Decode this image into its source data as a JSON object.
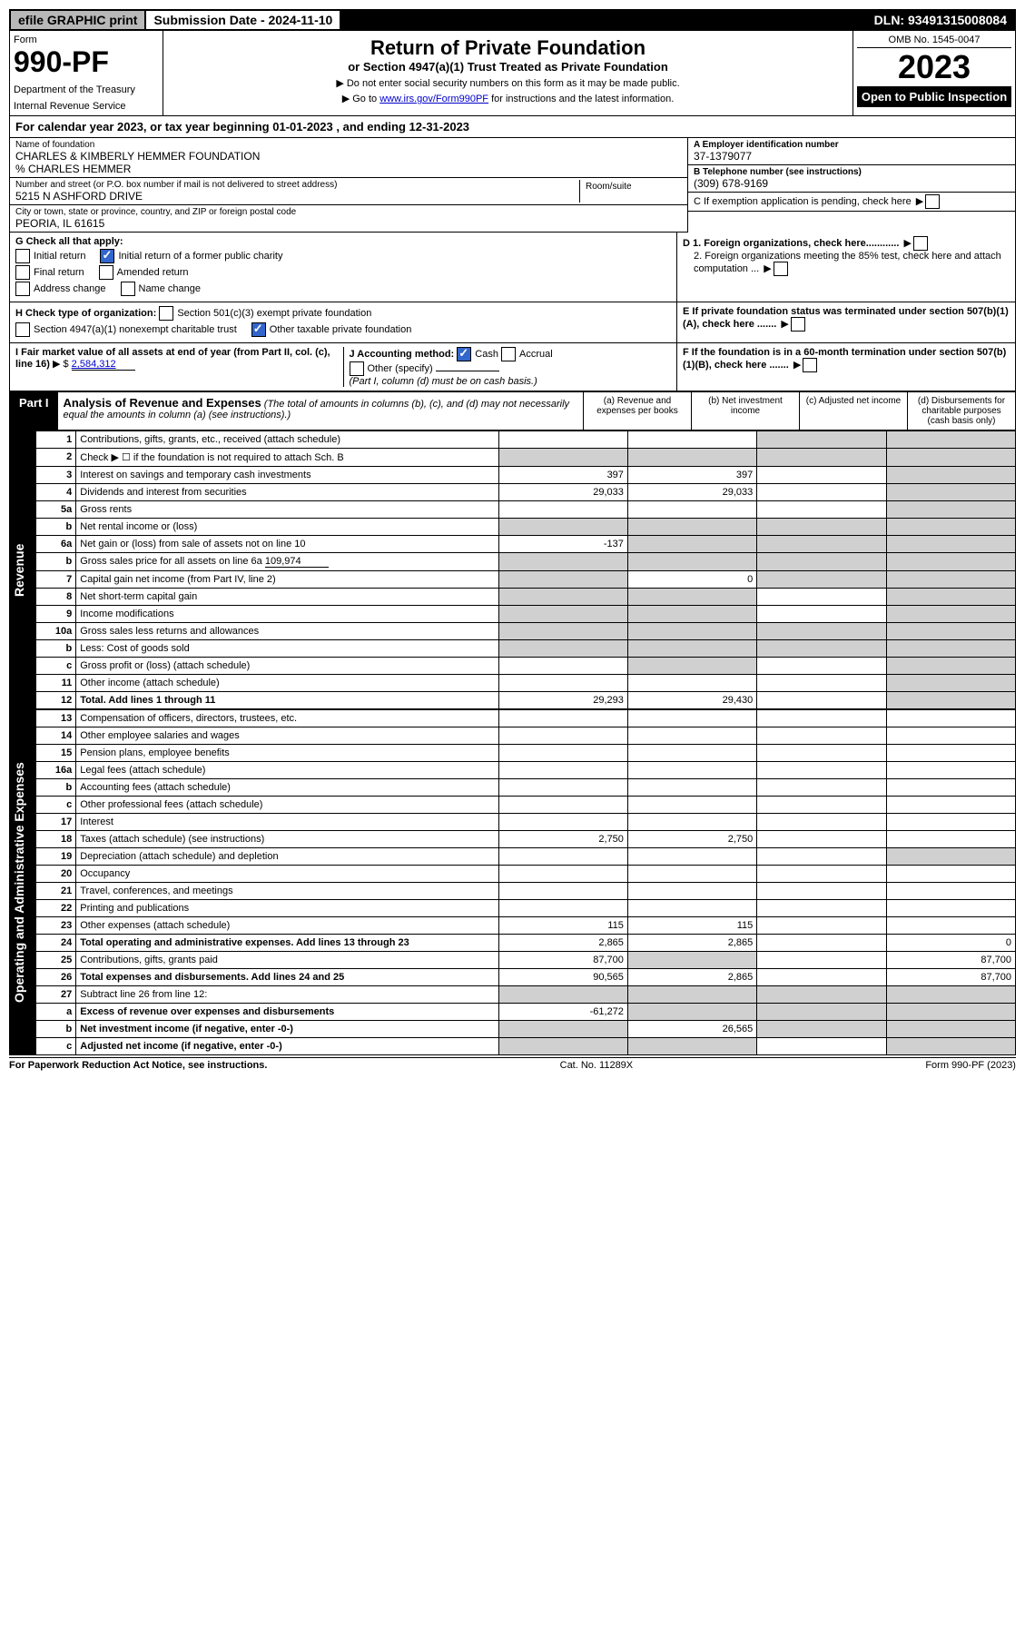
{
  "top_bar": {
    "efile": "efile GRAPHIC print",
    "submission": "Submission Date - 2024-11-10",
    "dln": "DLN: 93491315008084"
  },
  "header": {
    "form_label": "Form",
    "form_number": "990-PF",
    "dept1": "Department of the Treasury",
    "dept2": "Internal Revenue Service",
    "title": "Return of Private Foundation",
    "subtitle": "or Section 4947(a)(1) Trust Treated as Private Foundation",
    "instr1": "▶ Do not enter social security numbers on this form as it may be made public.",
    "instr2_pre": "▶ Go to ",
    "instr2_link": "www.irs.gov/Form990PF",
    "instr2_post": " for instructions and the latest information.",
    "omb": "OMB No. 1545-0047",
    "year": "2023",
    "inspection": "Open to Public Inspection"
  },
  "cal_year": {
    "text_pre": "For calendar year 2023, or tax year beginning ",
    "begin": "01-01-2023",
    "text_mid": " , and ending ",
    "end": "12-31-2023"
  },
  "info": {
    "name_label": "Name of foundation",
    "name": "CHARLES & KIMBERLY HEMMER FOUNDATION",
    "care_of": "% CHARLES HEMMER",
    "address_label": "Number and street (or P.O. box number if mail is not delivered to street address)",
    "address": "5215 N ASHFORD DRIVE",
    "room_label": "Room/suite",
    "city_label": "City or town, state or province, country, and ZIP or foreign postal code",
    "city": "PEORIA, IL  61615",
    "ein_label": "A Employer identification number",
    "ein": "37-1379077",
    "phone_label": "B Telephone number (see instructions)",
    "phone": "(309) 678-9169",
    "c_label": "C If exemption application is pending, check here",
    "d1_label": "D 1. Foreign organizations, check here............",
    "d2_label": "2. Foreign organizations meeting the 85% test, check here and attach computation ...",
    "e_label": "E If private foundation status was terminated under section 507(b)(1)(A), check here .......",
    "f_label": "F If the foundation is in a 60-month termination under section 507(b)(1)(B), check here ......."
  },
  "g": {
    "label": "G Check all that apply:",
    "initial": "Initial return",
    "initial_former": "Initial return of a former public charity",
    "final": "Final return",
    "amended": "Amended return",
    "address_change": "Address change",
    "name_change": "Name change"
  },
  "h": {
    "label": "H Check type of organization:",
    "opt1": "Section 501(c)(3) exempt private foundation",
    "opt2": "Section 4947(a)(1) nonexempt charitable trust",
    "opt3": "Other taxable private foundation"
  },
  "i": {
    "label": "I Fair market value of all assets at end of year (from Part II, col. (c), line 16)",
    "value": "2,584,312",
    "prefix": "▶ $"
  },
  "j": {
    "label": "J Accounting method:",
    "cash": "Cash",
    "accrual": "Accrual",
    "other": "Other (specify)",
    "note": "(Part I, column (d) must be on cash basis.)"
  },
  "part1": {
    "part": "Part I",
    "title": "Analysis of Revenue and Expenses",
    "subtitle": "(The total of amounts in columns (b), (c), and (d) may not necessarily equal the amounts in column (a) (see instructions).)",
    "col_a": "(a) Revenue and expenses per books",
    "col_b": "(b) Net investment income",
    "col_c": "(c) Adjusted net income",
    "col_d": "(d) Disbursements for charitable purposes (cash basis only)"
  },
  "side_labels": {
    "revenue": "Revenue",
    "expenses": "Operating and Administrative Expenses"
  },
  "rows": [
    {
      "n": "1",
      "desc": "Contributions, gifts, grants, etc., received (attach schedule)",
      "a": "",
      "b": "",
      "c": "shade",
      "d": "shade"
    },
    {
      "n": "2",
      "desc": "Check ▶ ☐ if the foundation is not required to attach Sch. B",
      "a": "shade",
      "b": "shade",
      "c": "shade",
      "d": "shade",
      "wide": true
    },
    {
      "n": "3",
      "desc": "Interest on savings and temporary cash investments",
      "a": "397",
      "b": "397",
      "c": "",
      "d": "shade"
    },
    {
      "n": "4",
      "desc": "Dividends and interest from securities",
      "a": "29,033",
      "b": "29,033",
      "c": "",
      "d": "shade"
    },
    {
      "n": "5a",
      "desc": "Gross rents",
      "a": "",
      "b": "",
      "c": "",
      "d": "shade"
    },
    {
      "n": "b",
      "desc": "Net rental income or (loss)",
      "a": "shade",
      "b": "shade",
      "c": "shade",
      "d": "shade",
      "inset": true
    },
    {
      "n": "6a",
      "desc": "Net gain or (loss) from sale of assets not on line 10",
      "a": "-137",
      "b": "shade",
      "c": "shade",
      "d": "shade"
    },
    {
      "n": "b",
      "desc": "Gross sales price for all assets on line 6a",
      "inset_val": "109,974",
      "a": "shade",
      "b": "shade",
      "c": "shade",
      "d": "shade"
    },
    {
      "n": "7",
      "desc": "Capital gain net income (from Part IV, line 2)",
      "a": "shade",
      "b": "0",
      "c": "shade",
      "d": "shade"
    },
    {
      "n": "8",
      "desc": "Net short-term capital gain",
      "a": "shade",
      "b": "shade",
      "c": "",
      "d": "shade"
    },
    {
      "n": "9",
      "desc": "Income modifications",
      "a": "shade",
      "b": "shade",
      "c": "",
      "d": "shade"
    },
    {
      "n": "10a",
      "desc": "Gross sales less returns and allowances",
      "a": "shade",
      "b": "shade",
      "c": "shade",
      "d": "shade",
      "inset": true
    },
    {
      "n": "b",
      "desc": "Less: Cost of goods sold",
      "a": "shade",
      "b": "shade",
      "c": "shade",
      "d": "shade",
      "inset": true
    },
    {
      "n": "c",
      "desc": "Gross profit or (loss) (attach schedule)",
      "a": "",
      "b": "shade",
      "c": "",
      "d": "shade"
    },
    {
      "n": "11",
      "desc": "Other income (attach schedule)",
      "a": "",
      "b": "",
      "c": "",
      "d": "shade"
    },
    {
      "n": "12",
      "desc": "Total. Add lines 1 through 11",
      "a": "29,293",
      "b": "29,430",
      "c": "",
      "d": "shade",
      "bold": true
    }
  ],
  "exp_rows": [
    {
      "n": "13",
      "desc": "Compensation of officers, directors, trustees, etc.",
      "a": "",
      "b": "",
      "c": "",
      "d": ""
    },
    {
      "n": "14",
      "desc": "Other employee salaries and wages",
      "a": "",
      "b": "",
      "c": "",
      "d": ""
    },
    {
      "n": "15",
      "desc": "Pension plans, employee benefits",
      "a": "",
      "b": "",
      "c": "",
      "d": ""
    },
    {
      "n": "16a",
      "desc": "Legal fees (attach schedule)",
      "a": "",
      "b": "",
      "c": "",
      "d": ""
    },
    {
      "n": "b",
      "desc": "Accounting fees (attach schedule)",
      "a": "",
      "b": "",
      "c": "",
      "d": ""
    },
    {
      "n": "c",
      "desc": "Other professional fees (attach schedule)",
      "a": "",
      "b": "",
      "c": "",
      "d": ""
    },
    {
      "n": "17",
      "desc": "Interest",
      "a": "",
      "b": "",
      "c": "",
      "d": ""
    },
    {
      "n": "18",
      "desc": "Taxes (attach schedule) (see instructions)",
      "a": "2,750",
      "b": "2,750",
      "c": "",
      "d": ""
    },
    {
      "n": "19",
      "desc": "Depreciation (attach schedule) and depletion",
      "a": "",
      "b": "",
      "c": "",
      "d": "shade"
    },
    {
      "n": "20",
      "desc": "Occupancy",
      "a": "",
      "b": "",
      "c": "",
      "d": ""
    },
    {
      "n": "21",
      "desc": "Travel, conferences, and meetings",
      "a": "",
      "b": "",
      "c": "",
      "d": ""
    },
    {
      "n": "22",
      "desc": "Printing and publications",
      "a": "",
      "b": "",
      "c": "",
      "d": ""
    },
    {
      "n": "23",
      "desc": "Other expenses (attach schedule)",
      "a": "115",
      "b": "115",
      "c": "",
      "d": ""
    },
    {
      "n": "24",
      "desc": "Total operating and administrative expenses. Add lines 13 through 23",
      "a": "2,865",
      "b": "2,865",
      "c": "",
      "d": "0",
      "bold": true
    },
    {
      "n": "25",
      "desc": "Contributions, gifts, grants paid",
      "a": "87,700",
      "b": "shade",
      "c": "",
      "d": "87,700"
    },
    {
      "n": "26",
      "desc": "Total expenses and disbursements. Add lines 24 and 25",
      "a": "90,565",
      "b": "2,865",
      "c": "",
      "d": "87,700",
      "bold": true
    },
    {
      "n": "27",
      "desc": "Subtract line 26 from line 12:",
      "a": "shade",
      "b": "shade",
      "c": "shade",
      "d": "shade"
    },
    {
      "n": "a",
      "desc": "Excess of revenue over expenses and disbursements",
      "a": "-61,272",
      "b": "shade",
      "c": "shade",
      "d": "shade",
      "bold": true
    },
    {
      "n": "b",
      "desc": "Net investment income (if negative, enter -0-)",
      "a": "shade",
      "b": "26,565",
      "c": "shade",
      "d": "shade",
      "bold": true
    },
    {
      "n": "c",
      "desc": "Adjusted net income (if negative, enter -0-)",
      "a": "shade",
      "b": "shade",
      "c": "",
      "d": "shade",
      "bold": true
    }
  ],
  "footer": {
    "left": "For Paperwork Reduction Act Notice, see instructions.",
    "center": "Cat. No. 11289X",
    "right": "Form 990-PF (2023)"
  },
  "colors": {
    "link": "#0000cc",
    "shade": "#d0d0d0",
    "header_bg": "#000000",
    "check_bg": "#3266cc"
  }
}
